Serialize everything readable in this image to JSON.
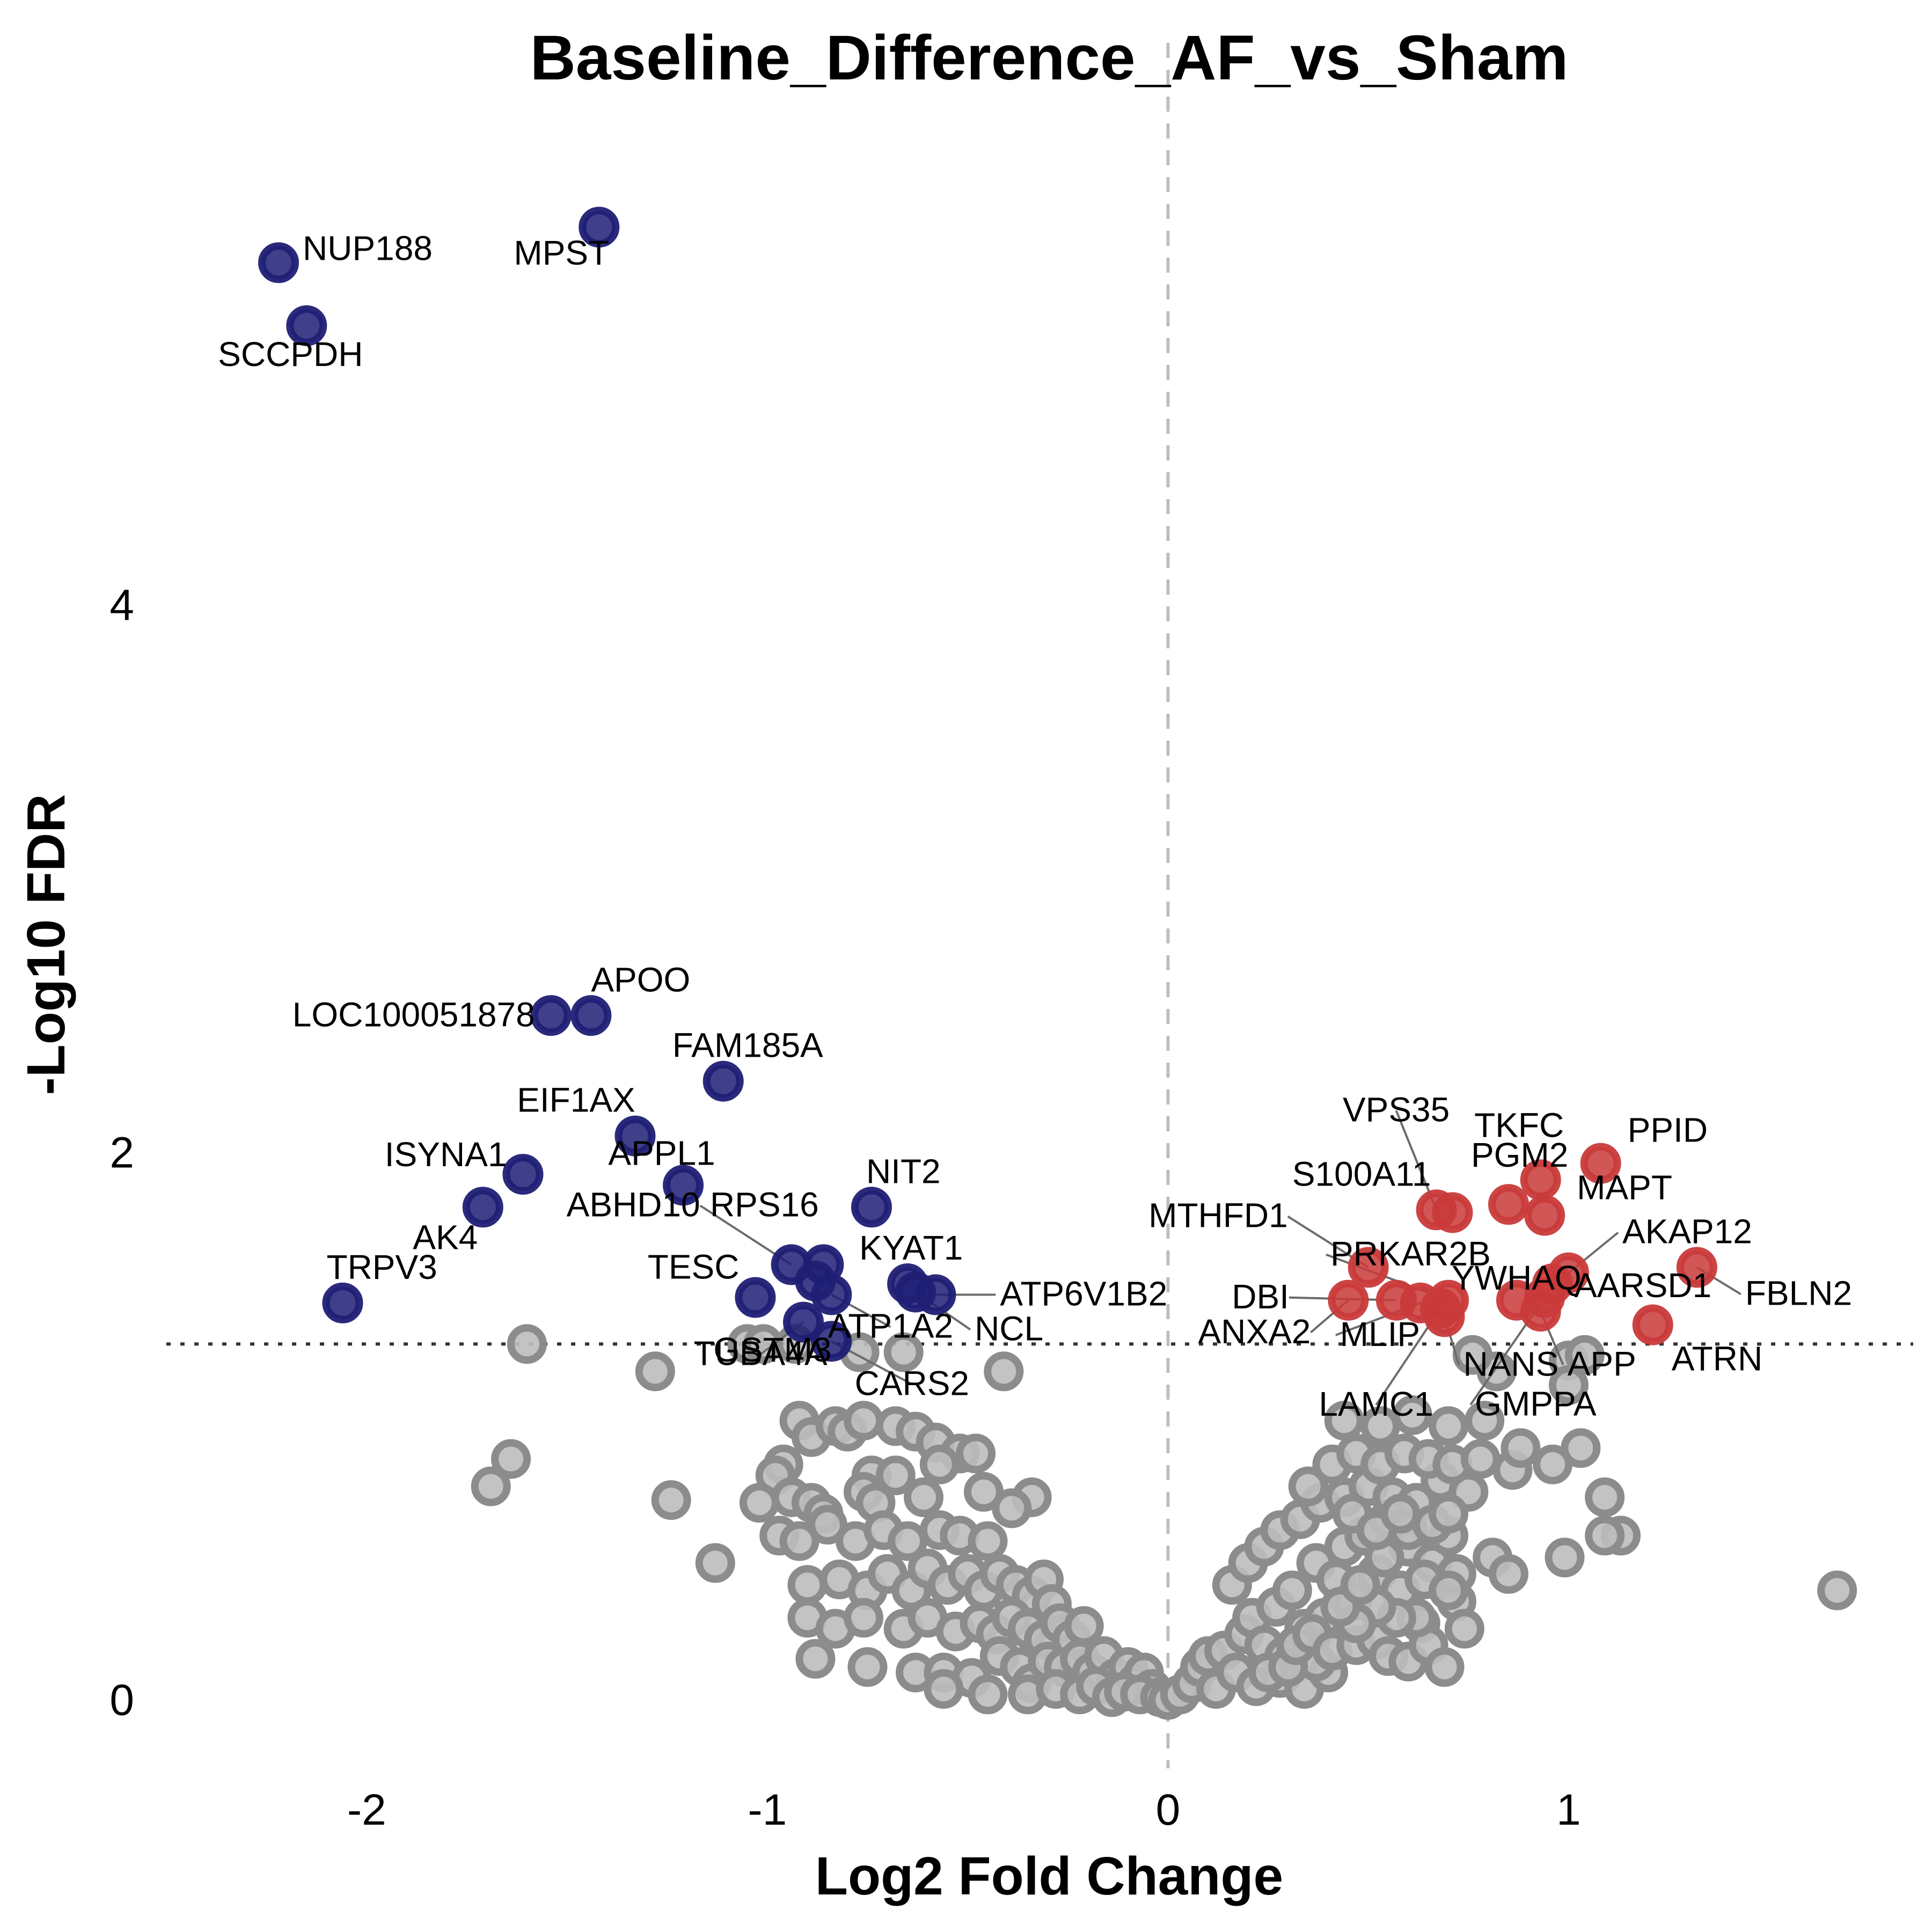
{
  "chart_data": {
    "type": "scatter",
    "title": "Baseline_Difference_AF_vs_Sham",
    "xlabel": "Log2 Fold Change",
    "ylabel": "-Log10 FDR",
    "xlim": [
      -2.5,
      1.86
    ],
    "ylim": [
      -0.25,
      5.7
    ],
    "x_ticks": [
      "-2",
      "-1",
      "0",
      "1"
    ],
    "y_ticks": [
      "0",
      "2",
      "4"
    ],
    "grid": false,
    "threshold_fdr": 1.3,
    "vertical_reference": 0,
    "colors": {
      "down": "#1f1f75",
      "up": "#c93a3a",
      "ns": "#8c8c8c"
    },
    "significant_down": [
      {
        "gene": "NUP188",
        "x": -2.22,
        "y": 5.25
      },
      {
        "gene": "MPST",
        "x": -1.42,
        "y": 5.38
      },
      {
        "gene": "SCCPDH",
        "x": -2.15,
        "y": 5.02
      },
      {
        "gene": "LOC100051878",
        "x": -1.54,
        "y": 2.5
      },
      {
        "gene": "APOO",
        "x": -1.44,
        "y": 2.5
      },
      {
        "gene": "FAM185A",
        "x": -1.11,
        "y": 2.26
      },
      {
        "gene": "EIF1AX",
        "x": -1.33,
        "y": 2.06
      },
      {
        "gene": "APPL1",
        "x": -1.21,
        "y": 1.88
      },
      {
        "gene": "ISYNA1",
        "x": -1.61,
        "y": 1.92
      },
      {
        "gene": "AK4",
        "x": -1.71,
        "y": 1.8
      },
      {
        "gene": "TRPV3",
        "x": -2.06,
        "y": 1.45
      },
      {
        "gene": "NIT2",
        "x": -0.74,
        "y": 1.8
      },
      {
        "gene": "ABHD10",
        "x": -0.94,
        "y": 1.59
      },
      {
        "gene": "RPS16",
        "x": -0.86,
        "y": 1.59
      },
      {
        "gene": "TESC",
        "x": -1.03,
        "y": 1.47
      },
      {
        "gene": "KYAT1",
        "x": -0.65,
        "y": 1.52
      },
      {
        "gene": "ATP6V1B2",
        "x": -0.58,
        "y": 1.48
      },
      {
        "gene": "NCL",
        "x": -0.63,
        "y": 1.49
      },
      {
        "gene": "TUBA4A",
        "x": -0.91,
        "y": 1.38
      },
      {
        "gene": "ATP1A2",
        "x": -0.84,
        "y": 1.48
      },
      {
        "gene": "GSTM3",
        "x": -0.88,
        "y": 1.53
      },
      {
        "gene": "CARS2",
        "x": -0.84,
        "y": 1.31
      }
    ],
    "significant_up": [
      {
        "gene": "PPID",
        "x": 1.08,
        "y": 1.96
      },
      {
        "gene": "TKFC",
        "x": 0.93,
        "y": 1.9
      },
      {
        "gene": "VPS35",
        "x": 0.67,
        "y": 1.79
      },
      {
        "gene": "PGM2",
        "x": 0.85,
        "y": 1.81
      },
      {
        "gene": "MAPT",
        "x": 0.94,
        "y": 1.77
      },
      {
        "gene": "S100A11",
        "x": 0.71,
        "y": 1.78
      },
      {
        "gene": "AKAP12",
        "x": 1.0,
        "y": 1.56
      },
      {
        "gene": "FBLN2",
        "x": 1.32,
        "y": 1.58
      },
      {
        "gene": "MTHFD1",
        "x": 0.5,
        "y": 1.58
      },
      {
        "gene": "PRKAR2B",
        "x": 0.7,
        "y": 1.46
      },
      {
        "gene": "YWHAQ",
        "x": 0.87,
        "y": 1.46
      },
      {
        "gene": "DBI",
        "x": 0.57,
        "y": 1.46
      },
      {
        "gene": "AARSD1",
        "x": 0.96,
        "y": 1.52
      },
      {
        "gene": "ANXA2",
        "x": 0.45,
        "y": 1.46
      },
      {
        "gene": "MLIP",
        "x": 0.63,
        "y": 1.45
      },
      {
        "gene": "NANS",
        "x": 0.69,
        "y": 1.4
      },
      {
        "gene": "APP",
        "x": 0.93,
        "y": 1.42
      },
      {
        "gene": "ATRN",
        "x": 1.21,
        "y": 1.37
      },
      {
        "gene": "LAMC1",
        "x": 0.68,
        "y": 1.43
      },
      {
        "gene": "GMPPA",
        "x": 0.94,
        "y": 1.47
      }
    ],
    "not_significant": [
      [
        -1.6,
        1.3
      ],
      [
        -1.28,
        1.2
      ],
      [
        -1.64,
        0.88
      ],
      [
        -1.69,
        0.78
      ],
      [
        -1.24,
        0.73
      ],
      [
        -1.13,
        0.5
      ],
      [
        -1.05,
        1.3
      ],
      [
        -1.01,
        1.3
      ],
      [
        -0.93,
        1.3
      ],
      [
        -0.77,
        1.27
      ],
      [
        -0.66,
        1.27
      ],
      [
        -0.41,
        1.2
      ],
      [
        -0.92,
        1.02
      ],
      [
        -0.89,
        0.96
      ],
      [
        -0.83,
        1.0
      ],
      [
        -0.8,
        0.98
      ],
      [
        -0.76,
        1.02
      ],
      [
        -0.68,
        1.0
      ],
      [
        -0.63,
        0.98
      ],
      [
        -0.58,
        0.94
      ],
      [
        -0.52,
        0.9
      ],
      [
        -0.48,
        0.9
      ],
      [
        -0.96,
        0.86
      ],
      [
        -0.98,
        0.82
      ],
      [
        -0.74,
        0.82
      ],
      [
        -0.68,
        0.82
      ],
      [
        -0.57,
        0.86
      ],
      [
        -0.94,
        0.74
      ],
      [
        -0.89,
        0.72
      ],
      [
        -0.76,
        0.76
      ],
      [
        -0.61,
        0.74
      ],
      [
        -1.02,
        0.72
      ],
      [
        -0.86,
        0.68
      ],
      [
        -0.73,
        0.72
      ],
      [
        -0.46,
        0.76
      ],
      [
        -0.34,
        0.74
      ],
      [
        -0.39,
        0.7
      ],
      [
        -0.97,
        0.6
      ],
      [
        -0.92,
        0.58
      ],
      [
        -0.85,
        0.64
      ],
      [
        -0.78,
        0.58
      ],
      [
        -0.71,
        0.62
      ],
      [
        -0.65,
        0.58
      ],
      [
        -0.57,
        0.62
      ],
      [
        -0.52,
        0.6
      ],
      [
        -0.45,
        0.58
      ],
      [
        -0.9,
        0.42
      ],
      [
        -0.82,
        0.44
      ],
      [
        -0.75,
        0.4
      ],
      [
        -0.7,
        0.46
      ],
      [
        -0.64,
        0.4
      ],
      [
        -0.6,
        0.48
      ],
      [
        -0.55,
        0.42
      ],
      [
        -0.5,
        0.46
      ],
      [
        -0.46,
        0.4
      ],
      [
        -0.42,
        0.46
      ],
      [
        -0.38,
        0.42
      ],
      [
        -0.34,
        0.38
      ],
      [
        -0.31,
        0.44
      ],
      [
        -0.29,
        0.35
      ],
      [
        -0.9,
        0.3
      ],
      [
        -0.83,
        0.26
      ],
      [
        -0.76,
        0.3
      ],
      [
        -0.66,
        0.26
      ],
      [
        -0.6,
        0.3
      ],
      [
        -0.53,
        0.25
      ],
      [
        -0.47,
        0.28
      ],
      [
        -0.43,
        0.24
      ],
      [
        -0.39,
        0.3
      ],
      [
        -0.35,
        0.26
      ],
      [
        -0.31,
        0.22
      ],
      [
        -0.27,
        0.28
      ],
      [
        -0.24,
        0.22
      ],
      [
        -0.21,
        0.27
      ],
      [
        -0.88,
        0.15
      ],
      [
        -0.75,
        0.12
      ],
      [
        -0.63,
        0.1
      ],
      [
        -0.56,
        0.1
      ],
      [
        -0.49,
        0.08
      ],
      [
        -0.42,
        0.16
      ],
      [
        -0.37,
        0.12
      ],
      [
        -0.34,
        0.06
      ],
      [
        -0.3,
        0.14
      ],
      [
        -0.26,
        0.12
      ],
      [
        -0.22,
        0.15
      ],
      [
        -0.19,
        0.1
      ],
      [
        -0.16,
        0.16
      ],
      [
        -0.13,
        0.08
      ],
      [
        -0.1,
        0.12
      ],
      [
        -0.08,
        0.06
      ],
      [
        -0.06,
        0.1
      ],
      [
        -0.04,
        0.04
      ],
      [
        -0.56,
        0.04
      ],
      [
        -0.45,
        0.02
      ],
      [
        -0.35,
        0.02
      ],
      [
        -0.28,
        0.04
      ],
      [
        -0.22,
        0.02
      ],
      [
        -0.18,
        0.05
      ],
      [
        -0.14,
        0.01
      ],
      [
        -0.11,
        0.03
      ],
      [
        -0.07,
        0.02
      ],
      [
        -0.02,
        0.01
      ],
      [
        0.0,
        0.0
      ],
      [
        0.03,
        0.02
      ],
      [
        0.06,
        0.06
      ],
      [
        0.08,
        0.12
      ],
      [
        0.1,
        0.16
      ],
      [
        0.12,
        0.04
      ],
      [
        0.14,
        0.18
      ],
      [
        0.17,
        0.1
      ],
      [
        0.19,
        0.24
      ],
      [
        0.21,
        0.3
      ],
      [
        0.24,
        0.2
      ],
      [
        0.27,
        0.34
      ],
      [
        0.29,
        0.16
      ],
      [
        0.31,
        0.4
      ],
      [
        0.34,
        0.26
      ],
      [
        0.37,
        0.5
      ],
      [
        0.39,
        0.3
      ],
      [
        0.42,
        0.44
      ],
      [
        0.44,
        0.56
      ],
      [
        0.46,
        0.36
      ],
      [
        0.49,
        0.6
      ],
      [
        0.52,
        0.46
      ],
      [
        0.55,
        0.66
      ],
      [
        0.58,
        0.4
      ],
      [
        0.6,
        0.56
      ],
      [
        0.63,
        0.28
      ],
      [
        0.66,
        0.5
      ],
      [
        0.7,
        0.6
      ],
      [
        0.72,
        0.36
      ],
      [
        0.74,
        0.26
      ],
      [
        0.16,
        0.42
      ],
      [
        0.2,
        0.5
      ],
      [
        0.24,
        0.56
      ],
      [
        0.28,
        0.62
      ],
      [
        0.33,
        0.66
      ],
      [
        0.38,
        0.72
      ],
      [
        0.44,
        0.74
      ],
      [
        0.5,
        0.78
      ],
      [
        0.56,
        0.74
      ],
      [
        0.62,
        0.72
      ],
      [
        0.68,
        0.8
      ],
      [
        0.75,
        0.76
      ],
      [
        0.35,
        0.78
      ],
      [
        0.41,
        0.86
      ],
      [
        0.47,
        0.9
      ],
      [
        0.53,
        0.86
      ],
      [
        0.59,
        0.9
      ],
      [
        0.65,
        0.88
      ],
      [
        0.71,
        0.86
      ],
      [
        0.78,
        0.88
      ],
      [
        0.86,
        0.84
      ],
      [
        0.96,
        0.86
      ],
      [
        1.03,
        0.92
      ],
      [
        1.09,
        0.74
      ],
      [
        1.13,
        0.6
      ],
      [
        0.44,
        1.02
      ],
      [
        0.53,
        1.0
      ],
      [
        0.61,
        1.04
      ],
      [
        0.7,
        1.0
      ],
      [
        0.79,
        1.02
      ],
      [
        1.0,
        1.24
      ],
      [
        0.88,
        0.92
      ],
      [
        0.82,
        1.2
      ],
      [
        0.76,
        1.26
      ],
      [
        1.04,
        1.26
      ],
      [
        1.0,
        1.15
      ],
      [
        0.99,
        0.52
      ],
      [
        1.09,
        0.6
      ],
      [
        0.81,
        0.52
      ],
      [
        0.85,
        0.46
      ],
      [
        1.67,
        0.4
      ],
      [
        0.72,
        0.46
      ],
      [
        0.22,
        0.05
      ],
      [
        0.28,
        0.08
      ],
      [
        0.34,
        0.04
      ],
      [
        0.4,
        0.1
      ],
      [
        0.37,
        0.14
      ],
      [
        0.25,
        0.1
      ],
      [
        0.3,
        0.12
      ],
      [
        0.32,
        0.2
      ],
      [
        0.36,
        0.24
      ],
      [
        0.41,
        0.18
      ],
      [
        0.47,
        0.2
      ],
      [
        0.52,
        0.22
      ],
      [
        0.55,
        0.16
      ],
      [
        0.6,
        0.14
      ],
      [
        0.65,
        0.2
      ],
      [
        0.69,
        0.12
      ],
      [
        0.62,
        0.3
      ],
      [
        0.57,
        0.3
      ],
      [
        0.52,
        0.34
      ],
      [
        0.47,
        0.28
      ],
      [
        0.43,
        0.34
      ],
      [
        0.48,
        0.42
      ],
      [
        0.54,
        0.52
      ],
      [
        0.6,
        0.62
      ],
      [
        0.66,
        0.64
      ],
      [
        0.7,
        0.68
      ],
      [
        0.64,
        0.44
      ],
      [
        0.7,
        0.4
      ],
      [
        0.46,
        0.68
      ],
      [
        0.52,
        0.62
      ],
      [
        0.58,
        0.68
      ]
    ]
  }
}
